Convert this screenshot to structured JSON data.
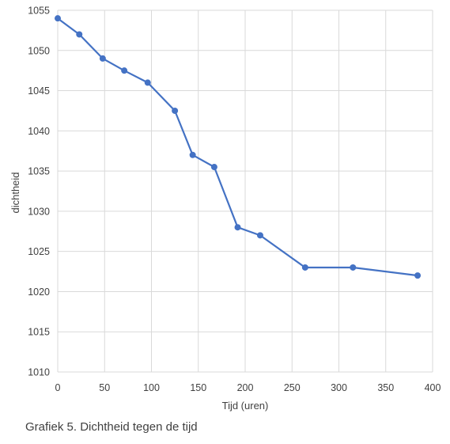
{
  "caption": "Grafiek 5. Dichtheid tegen de tijd",
  "chart_data": {
    "type": "scatter",
    "title": "",
    "xlabel": "Tijd (uren)",
    "ylabel": "dichtheid",
    "xlim": [
      0,
      400
    ],
    "ylim": [
      1010,
      1055
    ],
    "xticks": [
      0,
      50,
      100,
      150,
      200,
      250,
      300,
      350,
      400
    ],
    "yticks": [
      1010,
      1015,
      1020,
      1025,
      1030,
      1035,
      1040,
      1045,
      1050,
      1055
    ],
    "grid": true,
    "legend": false,
    "line_connected": true,
    "marker": "circle",
    "series_color": "#4472C4",
    "grid_color": "#D9D9D9",
    "series": [
      {
        "x": [
          0,
          23,
          48,
          71,
          96,
          125,
          144,
          167,
          192,
          216,
          264,
          315,
          384
        ],
        "y": [
          1054,
          1052,
          1049,
          1047.5,
          1046,
          1042.5,
          1037,
          1035.5,
          1028,
          1027,
          1023,
          1023,
          1022
        ]
      }
    ]
  }
}
